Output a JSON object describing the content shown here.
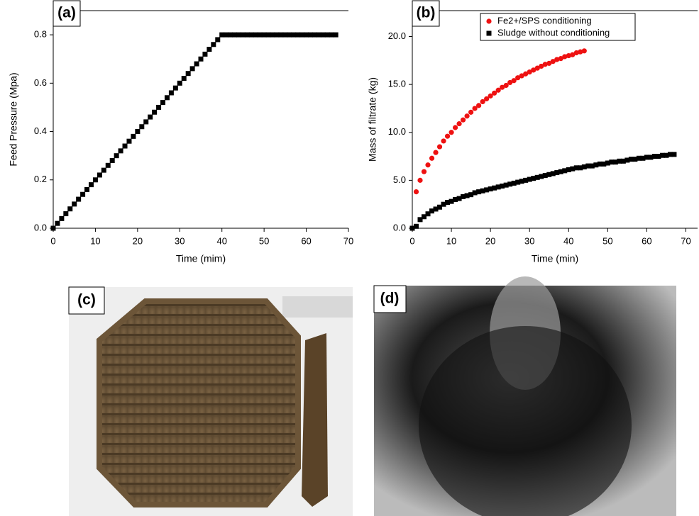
{
  "chart_data": [
    {
      "type": "scatter",
      "title": "(a)",
      "x_label": "Time (mim)",
      "y_label": "Feed Pressure (Mpa)",
      "xlim": [
        0,
        70
      ],
      "ylim": [
        0,
        0.9
      ],
      "xticks": [
        0,
        10,
        20,
        30,
        40,
        50,
        60,
        70
      ],
      "yticks": [
        {
          "value": 0,
          "label": "0.0"
        },
        0.2,
        0.4,
        0.6,
        0.8
      ],
      "series": [
        {
          "color": "#000000",
          "marker": "square",
          "x": [
            0,
            1,
            2,
            3,
            4,
            5,
            6,
            7,
            8,
            9,
            10,
            11,
            12,
            13,
            14,
            15,
            16,
            17,
            18,
            19,
            20,
            21,
            22,
            23,
            24,
            25,
            26,
            27,
            28,
            29,
            30,
            31,
            32,
            33,
            34,
            35,
            36,
            37,
            38,
            39,
            40,
            41,
            42,
            43,
            44,
            45,
            46,
            47,
            48,
            49,
            50,
            51,
            52,
            53,
            54,
            55,
            56,
            57,
            58,
            59,
            60,
            61,
            62,
            63,
            64,
            65,
            66,
            67
          ],
          "values": [
            0,
            0.02,
            0.04,
            0.06,
            0.08,
            0.1,
            0.12,
            0.14,
            0.16,
            0.18,
            0.2,
            0.22,
            0.24,
            0.26,
            0.28,
            0.3,
            0.32,
            0.34,
            0.36,
            0.38,
            0.4,
            0.42,
            0.44,
            0.46,
            0.48,
            0.5,
            0.52,
            0.54,
            0.56,
            0.58,
            0.6,
            0.62,
            0.64,
            0.66,
            0.68,
            0.7,
            0.72,
            0.74,
            0.76,
            0.78,
            0.8,
            0.8,
            0.8,
            0.8,
            0.8,
            0.8,
            0.8,
            0.8,
            0.8,
            0.8,
            0.8,
            0.8,
            0.8,
            0.8,
            0.8,
            0.8,
            0.8,
            0.8,
            0.8,
            0.8,
            0.8,
            0.8,
            0.8,
            0.8,
            0.8,
            0.8,
            0.8,
            0.8
          ]
        }
      ]
    },
    {
      "type": "scatter",
      "title": "(b)",
      "x_label": "Time (min)",
      "y_label": "Mass of filtrate (kg)",
      "xlim": [
        0,
        73
      ],
      "ylim": [
        0,
        22.7
      ],
      "legend": "top-center",
      "xticks": [
        0,
        10,
        20,
        30,
        40,
        50,
        60,
        70
      ],
      "yticks": [
        {
          "value": 0,
          "label": "0.0"
        },
        {
          "value": 5,
          "label": "5.0"
        },
        {
          "value": 10,
          "label": "10.0"
        },
        {
          "value": 15,
          "label": "15.0"
        },
        {
          "value": 20,
          "label": "20.0"
        }
      ],
      "series": [
        {
          "name": "Fe2+/SPS conditioning",
          "color": "#ee1111",
          "marker": "circle",
          "x": [
            0,
            1,
            2,
            3,
            4,
            5,
            6,
            7,
            8,
            9,
            10,
            11,
            12,
            13,
            14,
            15,
            16,
            17,
            18,
            19,
            20,
            21,
            22,
            23,
            24,
            25,
            26,
            27,
            28,
            29,
            30,
            31,
            32,
            33,
            34,
            35,
            36,
            37,
            38,
            39,
            40,
            41,
            42,
            43,
            44
          ],
          "values": [
            0,
            3.8,
            5.0,
            5.9,
            6.6,
            7.3,
            7.9,
            8.5,
            9.1,
            9.6,
            10.0,
            10.5,
            10.9,
            11.3,
            11.7,
            12.1,
            12.5,
            12.8,
            13.2,
            13.5,
            13.8,
            14.1,
            14.4,
            14.7,
            14.9,
            15.2,
            15.4,
            15.7,
            15.9,
            16.1,
            16.3,
            16.5,
            16.7,
            16.9,
            17.1,
            17.2,
            17.4,
            17.6,
            17.7,
            17.9,
            18.0,
            18.1,
            18.3,
            18.4,
            18.5
          ]
        },
        {
          "name": "Sludge without conditioning",
          "color": "#000000",
          "marker": "square",
          "x": [
            0,
            1,
            2,
            3,
            4,
            5,
            6,
            7,
            8,
            9,
            10,
            11,
            12,
            13,
            14,
            15,
            16,
            17,
            18,
            19,
            20,
            21,
            22,
            23,
            24,
            25,
            26,
            27,
            28,
            29,
            30,
            31,
            32,
            33,
            34,
            35,
            36,
            37,
            38,
            39,
            40,
            41,
            42,
            43,
            44,
            45,
            46,
            47,
            48,
            49,
            50,
            51,
            52,
            53,
            54,
            55,
            56,
            57,
            58,
            59,
            60,
            61,
            62,
            63,
            64,
            65,
            66,
            67
          ],
          "values": [
            0,
            0.2,
            0.9,
            1.2,
            1.5,
            1.8,
            2.0,
            2.2,
            2.5,
            2.7,
            2.8,
            3.0,
            3.1,
            3.3,
            3.4,
            3.5,
            3.7,
            3.8,
            3.9,
            4.0,
            4.1,
            4.2,
            4.3,
            4.4,
            4.5,
            4.6,
            4.7,
            4.8,
            4.9,
            5.0,
            5.1,
            5.2,
            5.3,
            5.4,
            5.5,
            5.6,
            5.7,
            5.8,
            5.9,
            6.0,
            6.1,
            6.2,
            6.3,
            6.3,
            6.4,
            6.5,
            6.5,
            6.6,
            6.7,
            6.7,
            6.8,
            6.9,
            6.9,
            7.0,
            7.0,
            7.1,
            7.2,
            7.2,
            7.3,
            7.3,
            7.4,
            7.4,
            7.5,
            7.5,
            7.6,
            7.6,
            7.7,
            7.7
          ]
        }
      ]
    }
  ],
  "photos": [
    {
      "label": "(c)"
    },
    {
      "label": "(d)"
    }
  ]
}
